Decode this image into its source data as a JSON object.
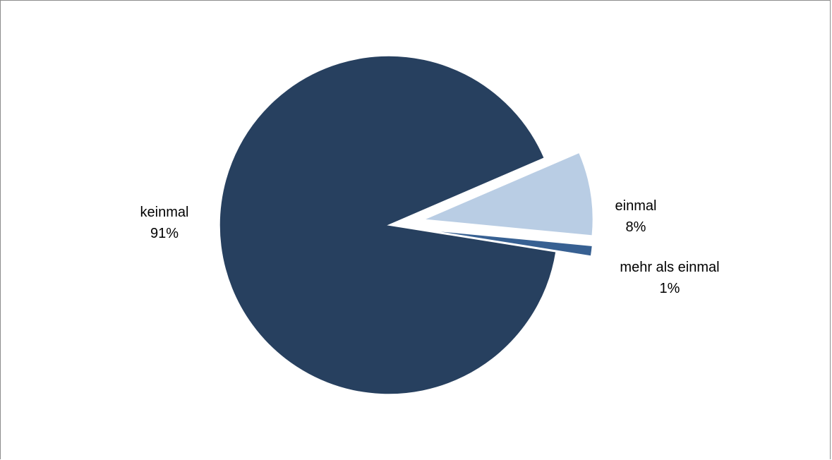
{
  "chart_data": {
    "type": "pie",
    "title": "",
    "slices": [
      {
        "name": "keinmal",
        "value": 91,
        "label": "91%",
        "color": "#27405f",
        "exploded": false
      },
      {
        "name": "einmal",
        "value": 8,
        "label": "8%",
        "color": "#b9cde4",
        "exploded": true
      },
      {
        "name": "mehr als einmal",
        "value": 1,
        "label": "1%",
        "color": "#376092",
        "exploded": true
      }
    ],
    "legend": "none",
    "labels_outside": true
  },
  "colors": {
    "background": "#ffffff",
    "border": "#8c8c8c"
  }
}
